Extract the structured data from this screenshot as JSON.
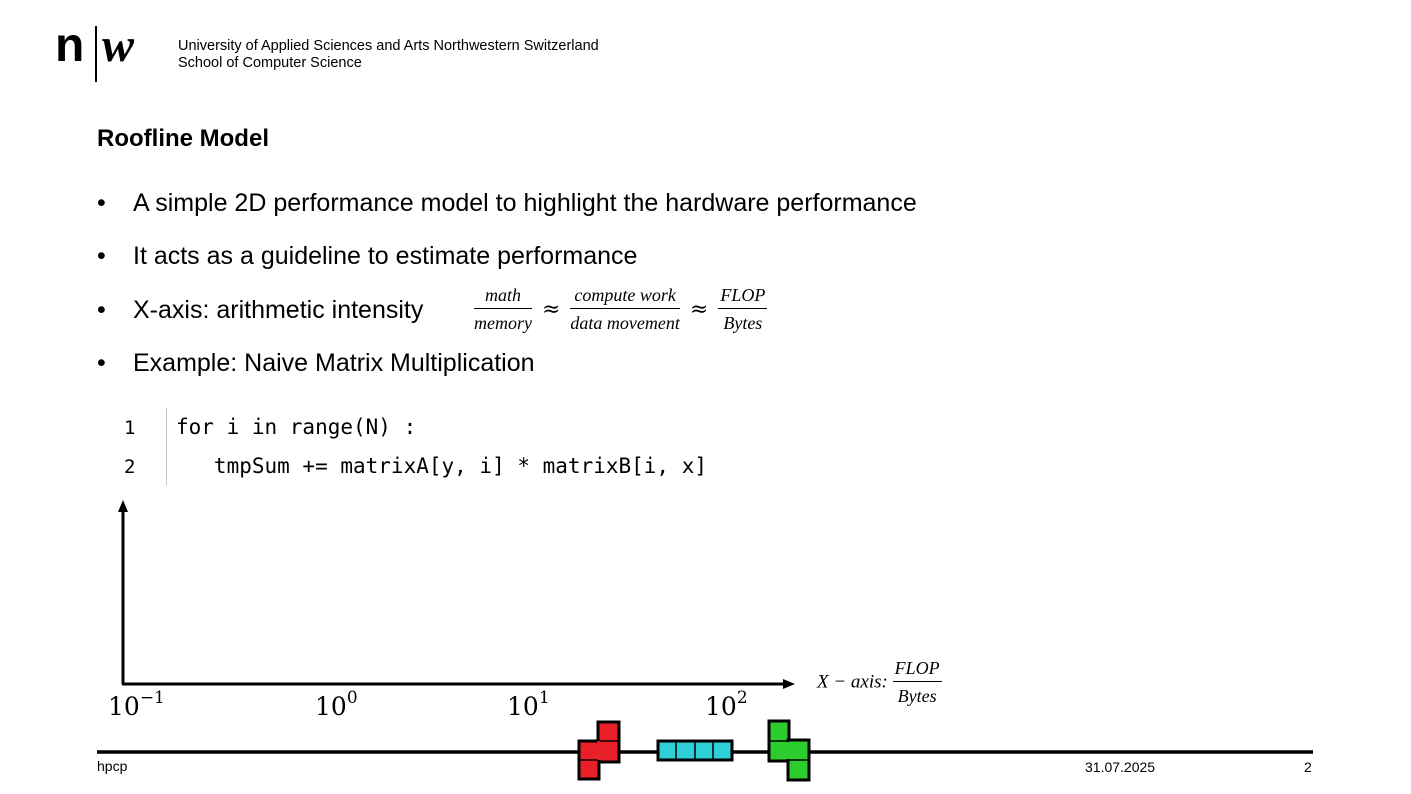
{
  "header": {
    "logo_n": "n",
    "logo_w": "w",
    "university": "University of Applied Sciences and Arts Northwestern Switzerland",
    "school": "School of Computer Science"
  },
  "slide": {
    "title": "Roofline Model",
    "bullets": [
      "A simple 2D performance model to highlight the hardware performance",
      "It acts as a guideline to estimate performance",
      "X-axis: arithmetic intensity",
      "Example: Naive Matrix Multiplication"
    ],
    "bullet_symbol": "•",
    "formula": {
      "f1_num": "math",
      "f1_den": "memory",
      "f2_num": "compute work",
      "f2_den": "data movement",
      "f3_num": "FLOP",
      "f3_den": "Bytes",
      "approx": "≈"
    }
  },
  "code": {
    "lines": [
      {
        "no": "1",
        "text": "for i in range(N) :"
      },
      {
        "no": "2",
        "text": "   tmpSum += matrixA[y, i] * matrixB[i, x]"
      }
    ]
  },
  "chart_data": {
    "type": "scatter",
    "title": "",
    "xlabel": "X − axis: FLOP / Bytes",
    "xlabel_prefix": "X − axis: ",
    "xlabel_num": "FLOP",
    "xlabel_den": "Bytes",
    "ylabel": "",
    "x_scale": "log",
    "xticks": [
      {
        "base": "10",
        "exp": "−1",
        "value": 0.1
      },
      {
        "base": "10",
        "exp": "0",
        "value": 1
      },
      {
        "base": "10",
        "exp": "1",
        "value": 10
      },
      {
        "base": "10",
        "exp": "2",
        "value": 100
      }
    ],
    "series": []
  },
  "footer": {
    "left": "hpcp",
    "date": "31.07.2025",
    "page": "2"
  },
  "colors": {
    "tetromino_red": "#e8202a",
    "tetromino_cyan": "#2ed0d8",
    "tetromino_green": "#2dcc2d",
    "outline": "#000000"
  }
}
